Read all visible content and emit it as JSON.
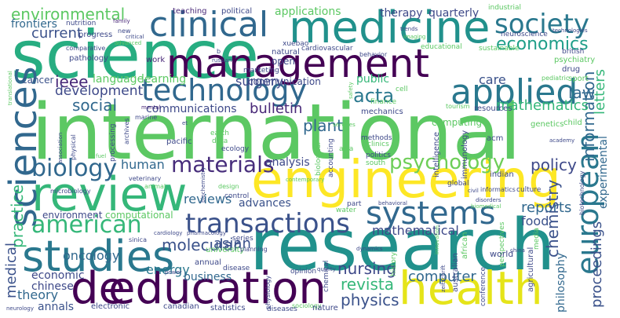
{
  "words": [
    {
      "t": "international",
      "c": "#5cc863"
    },
    {
      "t": "research",
      "c": "#21918c"
    },
    {
      "t": "science",
      "c": "#27ad81"
    },
    {
      "t": "engineering",
      "c": "#fde725"
    },
    {
      "t": "management",
      "c": "#440154"
    },
    {
      "t": "medicine",
      "c": "#21918c"
    },
    {
      "t": "review",
      "c": "#35b779"
    },
    {
      "t": "health",
      "c": "#e5e419"
    },
    {
      "t": "education",
      "c": "#440154"
    },
    {
      "t": "studies",
      "c": "#2a788e"
    },
    {
      "t": "technology",
      "c": "#31688e"
    },
    {
      "t": "clinical",
      "c": "#31688e"
    },
    {
      "t": "applied",
      "c": "#2a788e"
    },
    {
      "t": "systems",
      "c": "#31688e"
    },
    {
      "t": "transactions",
      "c": "#3b528b"
    },
    {
      "t": "society",
      "c": "#2a788e"
    },
    {
      "t": "sciences",
      "c": "#31688e"
    },
    {
      "t": "european",
      "c": "#2a788e"
    },
    {
      "t": "american",
      "c": "#35b779"
    },
    {
      "t": "biology",
      "c": "#31688e"
    },
    {
      "t": "materials",
      "c": "#472d7b"
    },
    {
      "t": "psychology",
      "c": "#6ece58"
    },
    {
      "t": "de",
      "c": "#440154"
    },
    {
      "t": "economics",
      "c": "#1f9e89"
    },
    {
      "t": "physics",
      "c": "#3b528b"
    },
    {
      "t": "revista",
      "c": "#35b779"
    },
    {
      "t": "information",
      "c": "#31688e"
    },
    {
      "t": "environmental",
      "c": "#5cc863"
    },
    {
      "t": "current",
      "c": "#3b528b"
    },
    {
      "t": "frontiers",
      "c": "#31688e"
    },
    {
      "t": "ieee",
      "c": "#482878"
    },
    {
      "t": "acta",
      "c": "#2a788e"
    },
    {
      "t": "development",
      "c": "#3e4989"
    },
    {
      "t": "social",
      "c": "#31688e"
    },
    {
      "t": "practice",
      "c": "#35b779"
    },
    {
      "t": "medical",
      "c": "#3b528b"
    },
    {
      "t": "surgery",
      "c": "#3e4989"
    },
    {
      "t": "law",
      "c": "#31688e"
    },
    {
      "t": "communications",
      "c": "#3e4989"
    },
    {
      "t": "bulletin",
      "c": "#482878"
    },
    {
      "t": "mathematics",
      "c": "#35b779"
    },
    {
      "t": "plant",
      "c": "#31688e"
    },
    {
      "t": "policy",
      "c": "#3e4989"
    },
    {
      "t": "analysis",
      "c": "#3e4989"
    },
    {
      "t": "reviews",
      "c": "#31688e"
    },
    {
      "t": "human",
      "c": "#31688e"
    },
    {
      "t": "advances",
      "c": "#3b528b"
    },
    {
      "t": "reports",
      "c": "#31688e"
    },
    {
      "t": "mathematical",
      "c": "#3e4989"
    },
    {
      "t": "molecular",
      "c": "#3b528b"
    },
    {
      "t": "asian",
      "c": "#3b528b"
    },
    {
      "t": "oncology",
      "c": "#31688e"
    },
    {
      "t": "economic",
      "c": "#3e4989"
    },
    {
      "t": "energy",
      "c": "#2a788e"
    },
    {
      "t": "business",
      "c": "#31688e"
    },
    {
      "t": "chinese",
      "c": "#3e4989"
    },
    {
      "t": "theory",
      "c": "#31688e"
    },
    {
      "t": "annals",
      "c": "#3b528b"
    },
    {
      "t": "nursing",
      "c": "#3e4989"
    },
    {
      "t": "computer",
      "c": "#31688e"
    },
    {
      "t": "chemistry",
      "c": "#3b528b"
    },
    {
      "t": "proceedings",
      "c": "#3b528b"
    },
    {
      "t": "philosophy",
      "c": "#31688e"
    },
    {
      "t": "experimental",
      "c": "#31688e"
    },
    {
      "t": "letters",
      "c": "#35b779"
    },
    {
      "t": "food",
      "c": "#3b528b"
    },
    {
      "t": "communication",
      "c": "#3e4989"
    },
    {
      "t": "public",
      "c": "#35b779"
    },
    {
      "t": "care",
      "c": "#3b528b"
    },
    {
      "t": "learning",
      "c": "#5cc863"
    },
    {
      "t": "language",
      "c": "#5cc863"
    },
    {
      "t": "cancer",
      "c": "#3b528b"
    },
    {
      "t": "environment",
      "c": "#3e4989"
    },
    {
      "t": "computational",
      "c": "#5cc863"
    },
    {
      "t": "applications",
      "c": "#5cc863"
    },
    {
      "t": "quarterly",
      "c": "#3e4989"
    },
    {
      "t": "therapy",
      "c": "#3e4989"
    },
    {
      "t": "teaching",
      "c": "#482878"
    },
    {
      "t": "political",
      "c": "#3e4989"
    },
    {
      "t": "nutrition",
      "c": "#3e4989"
    },
    {
      "t": "family",
      "c": "#482878"
    },
    {
      "t": "progress",
      "c": "#3e4989"
    },
    {
      "t": "pathology",
      "c": "#3e4989"
    },
    {
      "t": "comparative",
      "c": "#3e4989"
    },
    {
      "t": "work",
      "c": "#482878"
    },
    {
      "t": "open",
      "c": "#3e4989"
    },
    {
      "t": "natural",
      "c": "#3e4989"
    },
    {
      "t": "marketing",
      "c": "#3e4989"
    },
    {
      "t": "xuebao",
      "c": "#3e4989"
    },
    {
      "t": "cardiovascular",
      "c": "#3e4989"
    },
    {
      "t": "educational",
      "c": "#5cc863"
    },
    {
      "t": "sustainable",
      "c": "#5cc863"
    },
    {
      "t": "industrial",
      "c": "#5cc863"
    },
    {
      "t": "trends",
      "c": "#3e4989"
    },
    {
      "t": "imaging",
      "c": "#5cc863"
    },
    {
      "t": "neuroscience",
      "c": "#3e4989"
    },
    {
      "t": "technologies",
      "c": "#3e4989"
    },
    {
      "t": "psychiatry",
      "c": "#5cc863"
    },
    {
      "t": "british",
      "c": "#3e4989"
    },
    {
      "t": "drug",
      "c": "#3e4989"
    },
    {
      "t": "pediatric",
      "c": "#5cc863"
    },
    {
      "t": "sport",
      "c": "#5cc863"
    },
    {
      "t": "genetics",
      "c": "#5cc863"
    },
    {
      "t": "child",
      "c": "#5cc863"
    },
    {
      "t": "academy",
      "c": "#3e4989"
    },
    {
      "t": "resources",
      "c": "#3e4989"
    },
    {
      "t": "tourism",
      "c": "#5cc863"
    },
    {
      "t": "computing",
      "c": "#5cc863"
    },
    {
      "t": "cell",
      "c": "#5cc863"
    },
    {
      "t": "finance",
      "c": "#5cc863"
    },
    {
      "t": "mechanics",
      "c": "#3e4989"
    },
    {
      "t": "intelligence",
      "c": "#3e4989"
    },
    {
      "t": "immunology",
      "c": "#3e4989"
    },
    {
      "t": "acm",
      "c": "#3e4989"
    },
    {
      "t": "indian",
      "c": "#3e4989"
    },
    {
      "t": "culture",
      "c": "#3e4989"
    },
    {
      "t": "biotechnology",
      "c": "#3e4989"
    },
    {
      "t": "clinics",
      "c": "#5cc863"
    },
    {
      "t": "methods",
      "c": "#3e4989"
    },
    {
      "t": "politics",
      "c": "#3e4989"
    },
    {
      "t": "south",
      "c": "#5cc863"
    },
    {
      "t": "asia",
      "c": "#5cc863"
    },
    {
      "t": "informatics",
      "c": "#3e4989"
    },
    {
      "t": "contemporary",
      "c": "#5cc863"
    },
    {
      "t": "pacific",
      "c": "#3e4989"
    },
    {
      "t": "earth",
      "c": "#5cc863"
    },
    {
      "t": "data",
      "c": "#5cc863"
    },
    {
      "t": "ecology",
      "c": "#3e4989"
    },
    {
      "t": "biological",
      "c": "#5cc863"
    },
    {
      "t": "accounting",
      "c": "#3e4989"
    },
    {
      "t": "veterinary",
      "c": "#3e4989"
    },
    {
      "t": "animal",
      "c": "#5cc863"
    },
    {
      "t": "design",
      "c": "#5cc863"
    },
    {
      "t": "microbiology",
      "c": "#3e4989"
    },
    {
      "t": "physical",
      "c": "#3e4989"
    },
    {
      "t": "association",
      "c": "#3e4989"
    },
    {
      "t": "marine",
      "c": "#3e4989"
    },
    {
      "t": "mental",
      "c": "#482878"
    },
    {
      "t": "archives",
      "c": "#3e4989"
    },
    {
      "t": "et",
      "c": "#3e4989"
    },
    {
      "t": "services",
      "c": "#5cc863"
    },
    {
      "t": "processing",
      "c": "#3e4989"
    },
    {
      "t": "control",
      "c": "#3e4989"
    },
    {
      "t": "cardiology",
      "c": "#3e4989"
    },
    {
      "t": "pharmacology",
      "c": "#3e4989"
    },
    {
      "t": "toxicology",
      "c": "#5cc863"
    },
    {
      "t": "part",
      "c": "#3e4989"
    },
    {
      "t": "behavioral",
      "c": "#3e4989"
    },
    {
      "t": "water",
      "c": "#5cc863"
    },
    {
      "t": "biomedical",
      "c": "#5cc863"
    },
    {
      "t": "disorders",
      "c": "#3e4989"
    },
    {
      "t": "civil",
      "c": "#3e4989"
    },
    {
      "t": "global",
      "c": "#3e4989"
    },
    {
      "t": "sinica",
      "c": "#3e4989"
    },
    {
      "t": "university",
      "c": "#5cc863"
    },
    {
      "t": "series",
      "c": "#3e4989"
    },
    {
      "t": "planning",
      "c": "#3e4989"
    },
    {
      "t": "dynamics",
      "c": "#3e4989"
    },
    {
      "t": "history",
      "c": "#5cc863"
    },
    {
      "t": "opinion",
      "c": "#3e4989"
    },
    {
      "t": "quality",
      "c": "#3e4989"
    },
    {
      "t": "annual",
      "c": "#3e4989"
    },
    {
      "t": "disease",
      "c": "#3e4989"
    },
    {
      "t": "power",
      "c": "#3e4989"
    },
    {
      "t": "innovation",
      "c": "#5cc863"
    },
    {
      "t": "african",
      "c": "#5cc863"
    },
    {
      "t": "australian",
      "c": "#3e4989"
    },
    {
      "t": "zeitschrift",
      "c": "#3e4989"
    },
    {
      "t": "conference",
      "c": "#3e4989"
    },
    {
      "t": "perspectives",
      "c": "#5cc863"
    },
    {
      "t": "agricultural",
      "c": "#3e4989"
    },
    {
      "t": "media",
      "c": "#5cc863"
    },
    {
      "t": "china",
      "c": "#3e4989"
    },
    {
      "t": "physiology",
      "c": "#3e4989"
    },
    {
      "t": "sociology",
      "c": "#5cc863"
    },
    {
      "t": "diseases",
      "c": "#3e4989"
    },
    {
      "t": "nature",
      "c": "#3e4989"
    },
    {
      "t": "statistics",
      "c": "#3e4989"
    },
    {
      "t": "canadian",
      "c": "#3e4989"
    },
    {
      "t": "electronic",
      "c": "#3e4989"
    },
    {
      "t": "neurology",
      "c": "#3e4989"
    },
    {
      "t": "biochemistry",
      "c": "#3e4989"
    },
    {
      "t": "russian",
      "c": "#3e4989"
    },
    {
      "t": "b",
      "c": "#3e4989"
    },
    {
      "t": "new",
      "c": "#3e4989"
    },
    {
      "t": "critical",
      "c": "#3e4989"
    },
    {
      "t": "advanced",
      "c": "#5cc863"
    },
    {
      "t": "behavior",
      "c": "#3e4989"
    },
    {
      "t": "translational",
      "c": "#5cc863"
    },
    {
      "t": "fuel",
      "c": "#5cc863"
    },
    {
      "t": "electrical",
      "c": "#5cc863"
    },
    {
      "t": "safety",
      "c": "#5cc863"
    },
    {
      "t": "chemical",
      "c": "#3e4989"
    },
    {
      "t": "world",
      "c": "#3e4989"
    }
  ]
}
